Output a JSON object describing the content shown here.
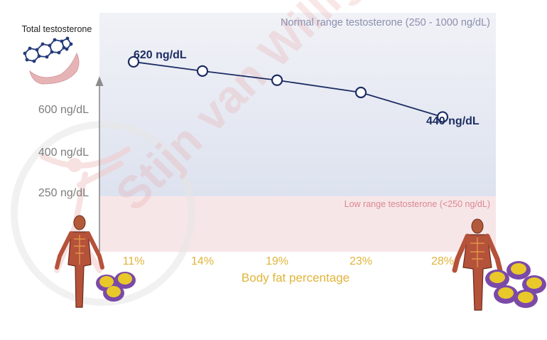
{
  "chart_data": {
    "type": "line",
    "title": "Total testosterone",
    "xlabel": "Body fat percentage",
    "ylabel": "Total testosterone",
    "categories": [
      "11%",
      "14%",
      "19%",
      "23%",
      "28%"
    ],
    "series": [
      {
        "name": "",
        "values": [
          620,
          590,
          560,
          520,
          440
        ]
      }
    ],
    "ylim": [
      0,
      780
    ],
    "y_ticks": [
      250,
      400,
      600
    ],
    "y_tick_labels": [
      "250 ng/dL",
      "400 ng/dL",
      "600 ng/dL"
    ],
    "point_labels": {
      "first": "620 ng/dL",
      "last": "440 ng/dL"
    },
    "bands": [
      {
        "label": "Normal range testosterone (250 - 1000 ng/dL)",
        "from": 250,
        "to": 1000,
        "color": "#dfe3ef"
      },
      {
        "label": "Low range testosterone (<250 ng/dL)",
        "from": 0,
        "to": 250,
        "color": "#f7e4e6"
      }
    ],
    "grid": false,
    "legend": "none",
    "colors": {
      "line": "#1d2d63",
      "axis_text": "#7d7d7d",
      "x_text": "#e0b43a",
      "normal_band_text": "#8a8fae",
      "low_band_text": "#d98890"
    }
  },
  "watermark": "Stijn van Willigen"
}
